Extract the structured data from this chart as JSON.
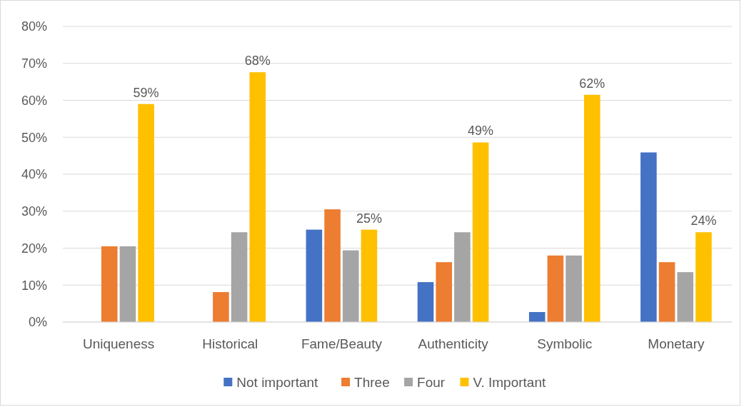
{
  "chart_data": {
    "type": "bar",
    "categories": [
      "Uniqueness",
      "Historical",
      "Fame/Beauty",
      "Authenticity",
      "Symbolic",
      "Monetary"
    ],
    "series": [
      {
        "name": "Not important",
        "color": "#4472c4",
        "values": [
          0,
          0,
          25,
          10.8,
          2.7,
          45.9
        ]
      },
      {
        "name": "Three",
        "color": "#ed7d31",
        "values": [
          20.5,
          8.1,
          30.5,
          16.2,
          18,
          16.2
        ]
      },
      {
        "name": "Four",
        "color": "#a5a5a5",
        "values": [
          20.5,
          24.3,
          19.4,
          24.3,
          18,
          13.5
        ]
      },
      {
        "name": "V. Important",
        "color": "#ffc000",
        "values": [
          59,
          67.6,
          25,
          48.6,
          61.5,
          24.3
        ],
        "value_labels": [
          "59%",
          "68%",
          "25%",
          "49%",
          "62%",
          "24%"
        ]
      }
    ],
    "ylim": [
      0,
      80
    ],
    "yticks": [
      {
        "value": 0,
        "label": "0%"
      },
      {
        "value": 10,
        "label": "10%"
      },
      {
        "value": 20,
        "label": "20%"
      },
      {
        "value": 30,
        "label": "30%"
      },
      {
        "value": 40,
        "label": "40%"
      },
      {
        "value": 50,
        "label": "50%"
      },
      {
        "value": 60,
        "label": "60%"
      },
      {
        "value": 70,
        "label": "70%"
      },
      {
        "value": 80,
        "label": "80%"
      }
    ],
    "grid": "y",
    "legend": "bottom"
  }
}
